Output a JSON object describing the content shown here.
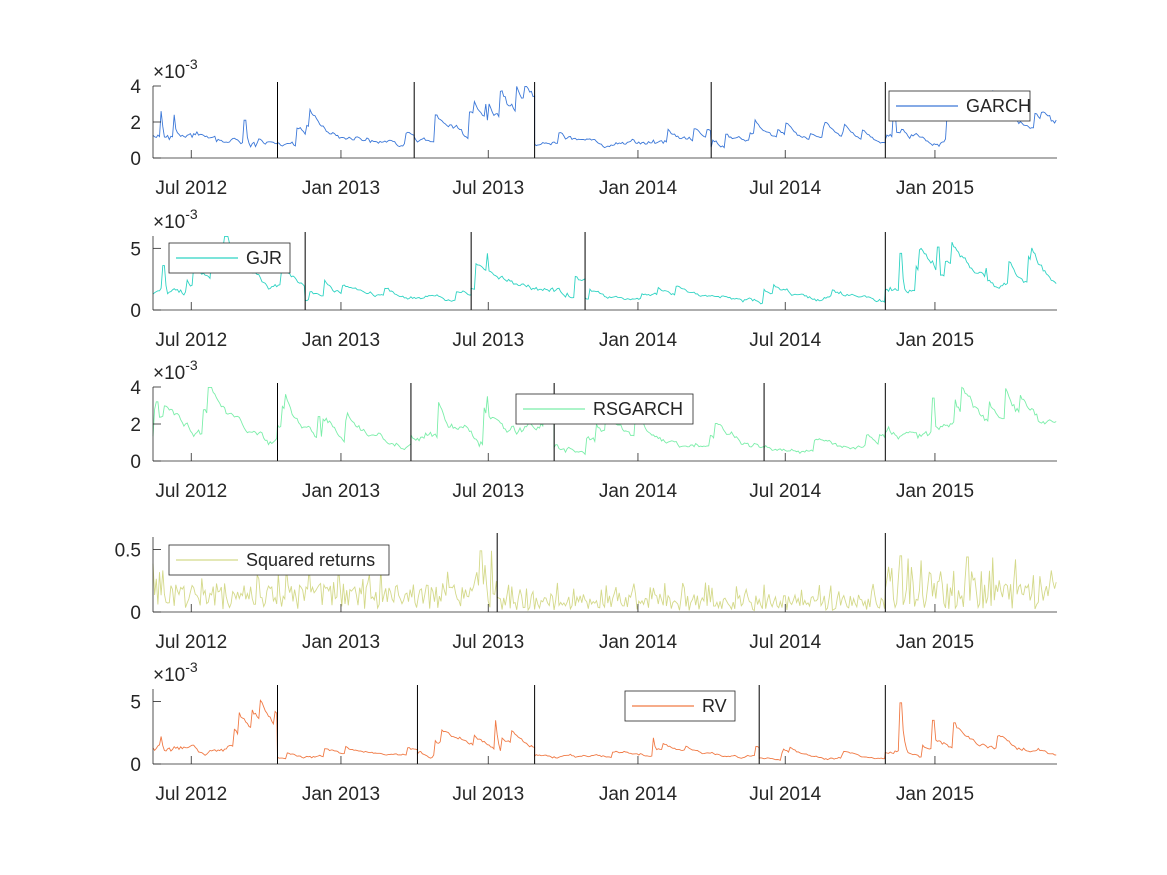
{
  "chart_data": [
    {
      "type": "line",
      "series": [
        {
          "name": "GARCH",
          "color": "#3c78d8"
        }
      ],
      "ylim": [
        0,
        4
      ],
      "yticks": [
        0,
        2,
        4
      ],
      "ytick_labels": [
        "0",
        "2",
        "4"
      ],
      "exponent": {
        "base": "×10",
        "power": "-3"
      },
      "legend_position": "top-right",
      "breakpoints": [
        "2012-10-15",
        "2013-04-01",
        "2013-08-27",
        "2014-04-01",
        "2014-11-01"
      ],
      "x_start": "2012-05-15",
      "x_end": "2015-05-31",
      "segments": [
        {
          "from": "2012-05-15",
          "to": "2012-10-15",
          "mean": 1.1,
          "seed": 11
        },
        {
          "from": "2012-10-15",
          "to": "2013-04-01",
          "mean": 0.75,
          "seed": 12
        },
        {
          "from": "2013-04-01",
          "to": "2013-08-27",
          "mean": 1.05,
          "seed": 13
        },
        {
          "from": "2013-08-27",
          "to": "2014-04-01",
          "mean": 0.7,
          "seed": 14
        },
        {
          "from": "2014-04-01",
          "to": "2014-11-01",
          "mean": 0.55,
          "seed": 15
        },
        {
          "from": "2014-11-01",
          "to": "2015-05-31",
          "mean": 1.1,
          "seed": 16
        }
      ],
      "spikes": [
        [
          "2012-05-25",
          2.6
        ],
        [
          "2012-06-10",
          2.4
        ],
        [
          "2012-09-05",
          2.1
        ],
        [
          "2013-06-10",
          2.5
        ],
        [
          "2013-06-28",
          3.0
        ],
        [
          "2014-11-12",
          2.6
        ],
        [
          "2015-05-25",
          1.6
        ]
      ]
    },
    {
      "type": "line",
      "series": [
        {
          "name": "GJR",
          "color": "#2fd3c3"
        }
      ],
      "ylim": [
        0,
        6
      ],
      "yticks": [
        0,
        5
      ],
      "ytick_labels": [
        "0",
        "5"
      ],
      "exponent": {
        "base": "×10",
        "power": "-3"
      },
      "legend_position": "top-left",
      "breakpoints": [
        "2012-11-18",
        "2013-06-10",
        "2013-10-28",
        "2014-11-01"
      ],
      "x_start": "2012-05-15",
      "x_end": "2015-05-31",
      "segments": [
        {
          "from": "2012-05-15",
          "to": "2012-11-18",
          "mean": 1.3,
          "seed": 21
        },
        {
          "from": "2012-11-18",
          "to": "2013-06-10",
          "mean": 0.8,
          "seed": 22
        },
        {
          "from": "2013-06-10",
          "to": "2013-10-28",
          "mean": 1.4,
          "seed": 23
        },
        {
          "from": "2013-10-28",
          "to": "2014-11-01",
          "mean": 0.8,
          "seed": 24
        },
        {
          "from": "2014-11-01",
          "to": "2015-05-31",
          "mean": 1.5,
          "seed": 25
        }
      ],
      "spikes": [
        [
          "2012-05-28",
          3.6
        ],
        [
          "2012-08-15",
          2.9
        ],
        [
          "2013-06-30",
          4.6
        ],
        [
          "2014-11-20",
          4.6
        ],
        [
          "2015-01-05",
          5.1
        ],
        [
          "2015-03-05",
          3.4
        ]
      ]
    },
    {
      "type": "line",
      "series": [
        {
          "name": "RSGARCH",
          "color": "#7beea9"
        }
      ],
      "ylim": [
        0,
        4
      ],
      "yticks": [
        0,
        2,
        4
      ],
      "ytick_labels": [
        "0",
        "2",
        "4"
      ],
      "exponent": {
        "base": "×10",
        "power": "-3"
      },
      "legend_position": "top-center",
      "breakpoints": [
        "2012-10-15",
        "2013-03-28",
        "2013-09-20",
        "2014-06-05",
        "2014-11-01"
      ],
      "x_start": "2012-05-15",
      "x_end": "2015-05-31",
      "segments": [
        {
          "from": "2012-05-15",
          "to": "2012-10-15",
          "mean": 1.2,
          "seed": 31
        },
        {
          "from": "2012-10-15",
          "to": "2013-03-28",
          "mean": 0.9,
          "seed": 32
        },
        {
          "from": "2013-03-28",
          "to": "2013-09-20",
          "mean": 1.3,
          "seed": 33
        },
        {
          "from": "2013-09-20",
          "to": "2014-06-05",
          "mean": 0.8,
          "seed": 34
        },
        {
          "from": "2014-06-05",
          "to": "2014-11-01",
          "mean": 0.6,
          "seed": 35
        },
        {
          "from": "2014-11-01",
          "to": "2015-05-31",
          "mean": 1.3,
          "seed": 36
        }
      ],
      "spikes": [
        [
          "2012-05-20",
          3.2
        ],
        [
          "2012-12-05",
          2.4
        ],
        [
          "2013-06-30",
          3.5
        ],
        [
          "2014-12-30",
          3.4
        ],
        [
          "2015-05-25",
          2.1
        ]
      ]
    },
    {
      "type": "line",
      "series": [
        {
          "name": "Squared returns",
          "color": "#d4d98a"
        }
      ],
      "ylim": [
        0,
        0.6
      ],
      "yticks": [
        0,
        0.5
      ],
      "ytick_labels": [
        "0",
        "0.5"
      ],
      "exponent": null,
      "legend_position": "top-left",
      "breakpoints": [
        "2013-07-12",
        "2014-11-01"
      ],
      "x_start": "2012-05-15",
      "x_end": "2015-05-31",
      "segments": [
        {
          "from": "2012-05-15",
          "to": "2013-07-12",
          "mean": 0.13,
          "seed": 41
        },
        {
          "from": "2013-07-12",
          "to": "2014-11-01",
          "mean": 0.08,
          "seed": 42
        },
        {
          "from": "2014-11-01",
          "to": "2015-05-31",
          "mean": 0.15,
          "seed": 43
        }
      ],
      "spikes": [
        [
          "2013-06-22",
          0.49
        ],
        [
          "2013-07-05",
          0.49
        ],
        [
          "2014-11-20",
          0.45
        ],
        [
          "2015-02-10",
          0.44
        ]
      ]
    },
    {
      "type": "line",
      "series": [
        {
          "name": "RV",
          "color": "#f07a45"
        }
      ],
      "ylim": [
        0,
        6
      ],
      "yticks": [
        0,
        5
      ],
      "ytick_labels": [
        "0",
        "5"
      ],
      "exponent": {
        "base": "×10",
        "power": "-3"
      },
      "legend_position": "top-center",
      "breakpoints": [
        "2012-10-15",
        "2013-04-05",
        "2013-08-27",
        "2014-05-30",
        "2014-11-01"
      ],
      "x_start": "2012-05-15",
      "x_end": "2015-05-31",
      "segments": [
        {
          "from": "2012-05-15",
          "to": "2012-10-15",
          "mean": 1.2,
          "seed": 51
        },
        {
          "from": "2012-10-15",
          "to": "2013-04-05",
          "mean": 0.5,
          "seed": 52
        },
        {
          "from": "2013-04-05",
          "to": "2013-08-27",
          "mean": 0.9,
          "seed": 53
        },
        {
          "from": "2013-08-27",
          "to": "2014-05-30",
          "mean": 0.55,
          "seed": 54
        },
        {
          "from": "2014-05-30",
          "to": "2014-11-01",
          "mean": 0.4,
          "seed": 55
        },
        {
          "from": "2014-11-01",
          "to": "2015-05-31",
          "mean": 0.8,
          "seed": 56
        }
      ],
      "spikes": [
        [
          "2012-05-25",
          2.2
        ],
        [
          "2012-09-15",
          2.4
        ],
        [
          "2013-07-10",
          3.5
        ],
        [
          "2014-01-20",
          2.1
        ],
        [
          "2014-11-20",
          4.9
        ],
        [
          "2014-12-30",
          3.5
        ],
        [
          "2015-01-25",
          3.3
        ]
      ]
    }
  ],
  "x_ticks": [
    {
      "date": "2012-07-01",
      "label": "Jul 2012"
    },
    {
      "date": "2013-01-01",
      "label": "Jan 2013"
    },
    {
      "date": "2013-07-01",
      "label": "Jul 2013"
    },
    {
      "date": "2014-01-01",
      "label": "Jan 2014"
    },
    {
      "date": "2014-07-01",
      "label": "Jul 2014"
    },
    {
      "date": "2015-01-01",
      "label": "Jan 2015"
    }
  ]
}
